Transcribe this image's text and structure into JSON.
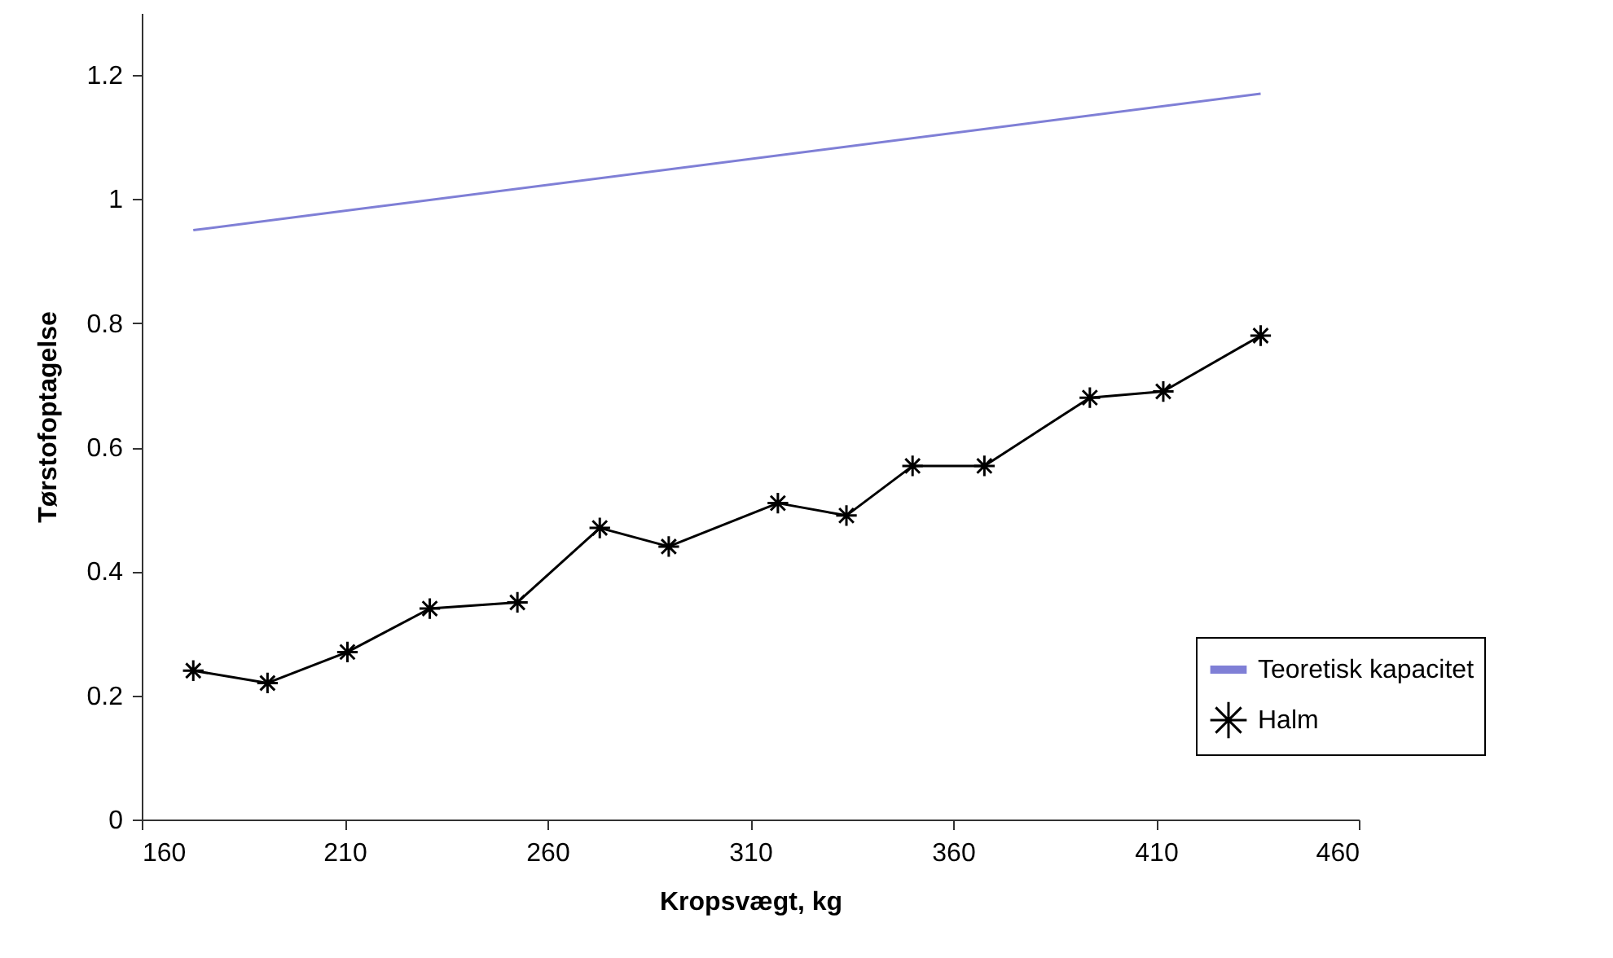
{
  "chart_data": {
    "type": "line",
    "xlabel": "Kropsvægt, kg",
    "ylabel": "Tørstofoptagelse",
    "xlim": [
      160,
      460
    ],
    "xticks": [
      160,
      210,
      260,
      310,
      360,
      410,
      460
    ],
    "ylim": [
      0,
      1.3
    ],
    "yticks": [
      0,
      0.2,
      0.4,
      0.6,
      0.8,
      1,
      1.2
    ],
    "grid": false,
    "legend": "bottom right",
    "series": [
      {
        "name": "Teoretisk kapacitet",
        "color": "#7f7fd6",
        "marker": "none",
        "x": [
          172.7,
          435.8
        ],
        "values": [
          0.95,
          1.17
        ]
      },
      {
        "name": "Halm",
        "color": "#000000",
        "marker": "cross",
        "x": [
          172.7,
          191,
          210.7,
          231,
          252.6,
          272.9,
          289.9,
          316.8,
          333.7,
          350,
          367.7,
          393.7,
          411.8,
          435.8
        ],
        "values": [
          0.24,
          0.22,
          0.27,
          0.34,
          0.35,
          0.47,
          0.44,
          0.51,
          0.49,
          0.57,
          0.57,
          0.68,
          0.69,
          0.78
        ]
      }
    ]
  }
}
